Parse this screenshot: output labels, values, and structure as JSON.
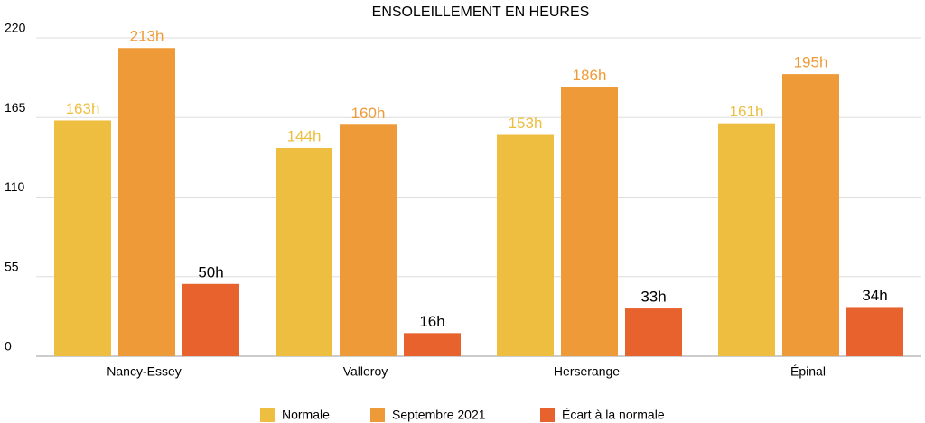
{
  "chart_data": {
    "type": "bar",
    "title": "ENSOLEILLEMENT EN HEURES",
    "categories": [
      "Nancy-Essey",
      "Valleroy",
      "Herserange",
      "Épinal"
    ],
    "series": [
      {
        "name": "Normale",
        "color": "#edbe3f",
        "label_color": "#edbe3f",
        "values": [
          163,
          144,
          153,
          161
        ],
        "value_labels": [
          "163h",
          "144h",
          "153h",
          "161h"
        ]
      },
      {
        "name": "Septembre 2021",
        "color": "#ef9a38",
        "label_color": "#ef9a38",
        "values": [
          213,
          160,
          186,
          195
        ],
        "value_labels": [
          "213h",
          "160h",
          "186h",
          "195h"
        ]
      },
      {
        "name": "Écart à la normale",
        "color": "#e8622e",
        "label_color": "#000000",
        "values": [
          50,
          16,
          33,
          34
        ],
        "value_labels": [
          "50h",
          "16h",
          "33h",
          "34h"
        ]
      }
    ],
    "ylim": [
      0,
      220
    ],
    "yticks": [
      0,
      55,
      110,
      165,
      220
    ],
    "grid": true,
    "legend": "bottom"
  }
}
